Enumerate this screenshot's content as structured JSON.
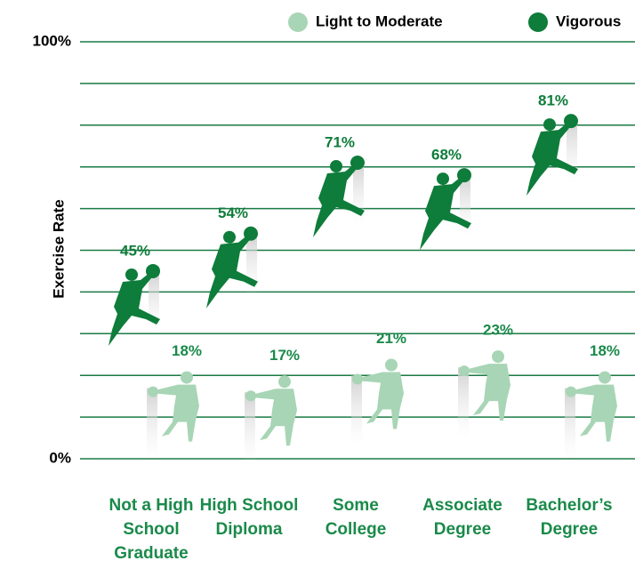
{
  "chart_data": {
    "type": "pictograph",
    "y_label": "Exercise Rate",
    "categories": [
      "Not a High School Graduate",
      "High School Diploma",
      "Some College",
      "Associate Degree",
      "Bachelor’s Degree"
    ],
    "series": [
      {
        "name": "Light to Moderate",
        "color": "#a8d5b5",
        "values": [
          18,
          17,
          21,
          23,
          18
        ],
        "value_labels": [
          "18%",
          "17%",
          "21%",
          "23%",
          "18%"
        ]
      },
      {
        "name": "Vigorous",
        "color": "#0e7c3a",
        "values": [
          45,
          54,
          71,
          68,
          81
        ],
        "value_labels": [
          "45%",
          "54%",
          "71%",
          "68%",
          "81%"
        ]
      }
    ],
    "ylim": [
      0,
      100
    ],
    "yticks": [
      {
        "value": 0,
        "label": "0%"
      },
      {
        "value": 10,
        "label": null
      },
      {
        "value": 20,
        "label": null
      },
      {
        "value": 30,
        "label": null
      },
      {
        "value": 40,
        "label": null
      },
      {
        "value": 50,
        "label": null
      },
      {
        "value": 60,
        "label": null
      },
      {
        "value": 70,
        "label": null
      },
      {
        "value": 80,
        "label": null
      },
      {
        "value": 90,
        "label": null
      },
      {
        "value": 100,
        "label": "100%"
      }
    ],
    "grid": true,
    "grid_color": "#1a7a45",
    "label_color": "#1a8a4a"
  }
}
